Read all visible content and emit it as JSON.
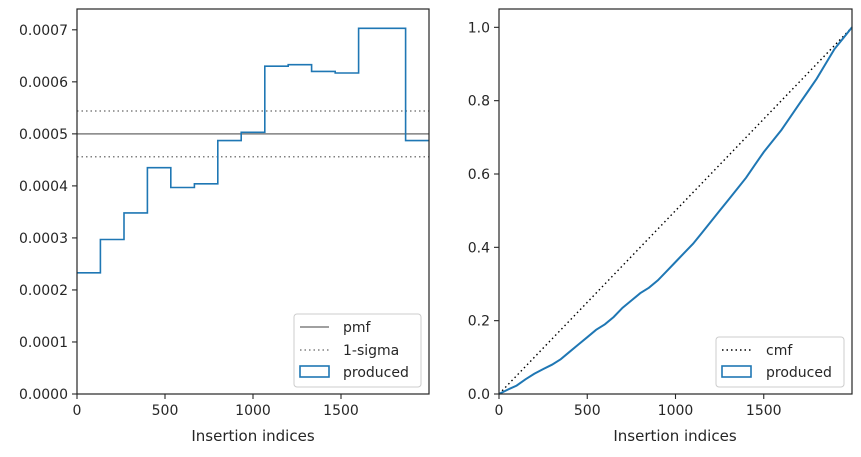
{
  "chart_data": [
    {
      "type": "step",
      "xlabel": "Insertion indices",
      "ylabel": "",
      "xlim": [
        0,
        2000
      ],
      "ylim": [
        0,
        0.00074
      ],
      "xticks": [
        0,
        500,
        1000,
        1500
      ],
      "xtick_labels": [
        "0",
        "500",
        "1000",
        "1500"
      ],
      "yticks": [
        0,
        0.0001,
        0.0002,
        0.0003,
        0.0004,
        0.0005,
        0.0006,
        0.0007
      ],
      "ytick_labels": [
        "0.0000",
        "0.0001",
        "0.0002",
        "0.0003",
        "0.0004",
        "0.0005",
        "0.0006",
        "0.0007"
      ],
      "grid": false,
      "legend_position": "lower-right",
      "bin_edges": [
        0,
        133,
        267,
        400,
        533,
        667,
        800,
        933,
        1067,
        1200,
        1333,
        1467,
        1600,
        1867,
        2000
      ],
      "series": [
        {
          "name": "produced",
          "type": "step",
          "color": "#1f77b4",
          "values": [
            0.000233,
            0.000297,
            0.000348,
            0.000435,
            0.000397,
            0.000404,
            0.000487,
            0.000503,
            0.00063,
            0.000633,
            0.00062,
            0.000617,
            0.000703,
            0.000487
          ]
        }
      ],
      "reference_lines": [
        {
          "name": "pmf",
          "value": 0.0005,
          "style": "solid",
          "color": "#808080"
        },
        {
          "name": "1-sigma",
          "value": 0.000544,
          "style": "dotted",
          "color": "#808080"
        },
        {
          "name": "",
          "value": 0.000456,
          "style": "dotted",
          "color": "#808080"
        }
      ],
      "legend": [
        "pmf",
        "1-sigma",
        "produced"
      ]
    },
    {
      "type": "line",
      "xlabel": "Insertion indices",
      "ylabel": "",
      "xlim": [
        0,
        2000
      ],
      "ylim": [
        0,
        1.05
      ],
      "xticks": [
        0,
        500,
        1000,
        1500
      ],
      "xtick_labels": [
        "0",
        "500",
        "1000",
        "1500"
      ],
      "yticks": [
        0,
        0.2,
        0.4,
        0.6,
        0.8,
        1.0
      ],
      "ytick_labels": [
        "0.0",
        "0.2",
        "0.4",
        "0.6",
        "0.8",
        "1.0"
      ],
      "grid": false,
      "legend_position": "lower-right",
      "series": [
        {
          "name": "cmf",
          "style": "dotted",
          "color": "#000000",
          "x": [
            0,
            2000
          ],
          "y": [
            0,
            1.0
          ]
        },
        {
          "name": "produced",
          "style": "solid",
          "color": "#1f77b4",
          "x": [
            0,
            50,
            100,
            150,
            200,
            250,
            300,
            350,
            400,
            450,
            500,
            550,
            600,
            650,
            700,
            750,
            800,
            850,
            900,
            950,
            1000,
            1050,
            1100,
            1150,
            1200,
            1250,
            1300,
            1350,
            1400,
            1450,
            1500,
            1550,
            1600,
            1650,
            1700,
            1750,
            1800,
            1850,
            1900,
            1950,
            2000
          ],
          "y": [
            0,
            0.012,
            0.023,
            0.04,
            0.055,
            0.068,
            0.08,
            0.095,
            0.115,
            0.135,
            0.155,
            0.175,
            0.19,
            0.21,
            0.235,
            0.255,
            0.275,
            0.29,
            0.31,
            0.335,
            0.36,
            0.385,
            0.41,
            0.44,
            0.47,
            0.5,
            0.53,
            0.56,
            0.59,
            0.625,
            0.66,
            0.69,
            0.72,
            0.755,
            0.79,
            0.825,
            0.86,
            0.9,
            0.94,
            0.97,
            1.0
          ]
        }
      ],
      "legend": [
        "cmf",
        "produced"
      ]
    }
  ]
}
